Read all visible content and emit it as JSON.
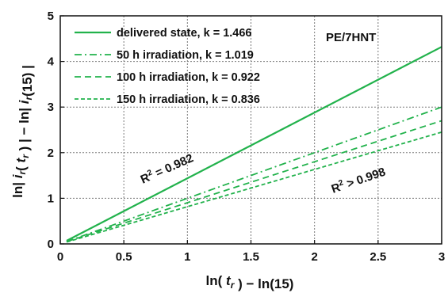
{
  "chart_data": {
    "type": "line",
    "xlabel": "ln( t_r ) − ln(15)",
    "ylabel": "ln| i_r( t_r ) | − ln| i_r(15) |",
    "xlim": [
      0,
      3
    ],
    "ylim": [
      0,
      5
    ],
    "x_ticks": [
      "0",
      "0.5",
      "1",
      "1.5",
      "2",
      "2.5",
      "3"
    ],
    "y_ticks": [
      "0",
      "1",
      "2",
      "3",
      "4",
      "5"
    ],
    "grid": true,
    "legend_position": "top-left",
    "series": [
      {
        "name": "delivered state, k = 1.466",
        "style": "solid",
        "x": [
          0.05,
          3
        ],
        "y": [
          0.07,
          4.32
        ]
      },
      {
        "name": "50 h irradiation, k = 1.019",
        "style": "dashdot",
        "x": [
          0.05,
          3
        ],
        "y": [
          0.05,
          3.0
        ]
      },
      {
        "name": "100 h irradiation, k = 0.922",
        "style": "dash",
        "x": [
          0.05,
          3
        ],
        "y": [
          0.05,
          2.7
        ]
      },
      {
        "name": "150 h irradiation, k = 0.836",
        "style": "shortdash",
        "x": [
          0.05,
          3
        ],
        "y": [
          0.04,
          2.45
        ]
      }
    ],
    "annotations": {
      "sample": "PE/7HNT",
      "r2_first": "R² = 0.982",
      "r2_rest": "R² > 0.998"
    },
    "line_color": "#22b24c"
  }
}
